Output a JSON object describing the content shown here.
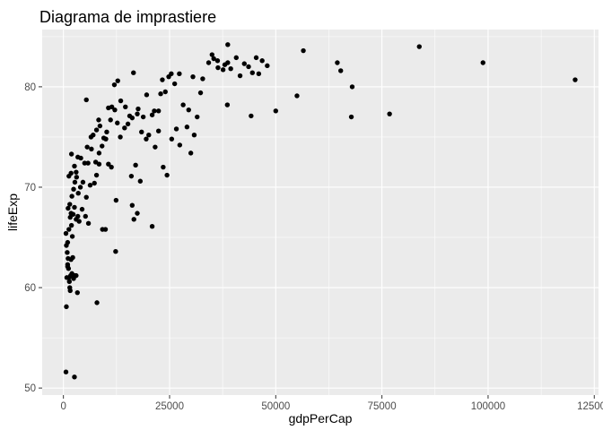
{
  "chart_data": {
    "type": "scatter",
    "title": "Diagrama de imprastiere",
    "xlabel": "gdpPerCap",
    "ylabel": "lifeExp",
    "xlim": [
      -5000,
      126000
    ],
    "ylim": [
      49.3,
      85.7
    ],
    "x_ticks": [
      0,
      25000,
      50000,
      75000,
      100000,
      125000
    ],
    "x_tick_labels": [
      "0",
      "25000",
      "50000",
      "75000",
      "100000",
      "125000"
    ],
    "y_ticks": [
      50,
      60,
      70,
      80
    ],
    "y_tick_labels": [
      "50",
      "60",
      "70",
      "80"
    ],
    "grid": true,
    "legend": "none",
    "colors": {
      "panel": "#ebebeb",
      "grid": "#ffffff",
      "points": "#000000",
      "tick_text": "#4d4d4d"
    },
    "series": [
      {
        "points": [
          [
            600,
            51.6
          ],
          [
            2600,
            51.1
          ],
          [
            700,
            58.1
          ],
          [
            7900,
            58.5
          ],
          [
            600,
            65.4
          ],
          [
            700,
            64.2
          ],
          [
            900,
            63.5
          ],
          [
            1000,
            62.3
          ],
          [
            1100,
            62.9
          ],
          [
            1200,
            61.9
          ],
          [
            1300,
            61.0
          ],
          [
            1400,
            60.6
          ],
          [
            1500,
            60.0
          ],
          [
            1600,
            59.7
          ],
          [
            1700,
            61.2
          ],
          [
            1800,
            62.8
          ],
          [
            2000,
            61.4
          ],
          [
            2200,
            63.0
          ],
          [
            2400,
            60.9
          ],
          [
            2600,
            61.2
          ],
          [
            3000,
            61.2
          ],
          [
            3300,
            59.5
          ],
          [
            800,
            61.0
          ],
          [
            1000,
            62.1
          ],
          [
            1000,
            64.5
          ],
          [
            1300,
            65.8
          ],
          [
            1600,
            67.0
          ],
          [
            1800,
            67.4
          ],
          [
            1900,
            66.2
          ],
          [
            2100,
            65.1
          ],
          [
            2300,
            67.3
          ],
          [
            2600,
            68.0
          ],
          [
            3000,
            66.8
          ],
          [
            3400,
            67.1
          ],
          [
            3700,
            66.6
          ],
          [
            4400,
            67.8
          ],
          [
            5200,
            67.1
          ],
          [
            5900,
            66.4
          ],
          [
            1100,
            67.9
          ],
          [
            1500,
            68.3
          ],
          [
            2000,
            69.1
          ],
          [
            2400,
            69.8
          ],
          [
            2700,
            70.5
          ],
          [
            3100,
            71.0
          ],
          [
            3500,
            69.4
          ],
          [
            4000,
            70.0
          ],
          [
            4600,
            70.5
          ],
          [
            5400,
            69.0
          ],
          [
            6300,
            70.2
          ],
          [
            7300,
            70.4
          ],
          [
            7800,
            71.2
          ],
          [
            8400,
            72.3
          ],
          [
            1300,
            71.1
          ],
          [
            1800,
            71.4
          ],
          [
            2600,
            72.1
          ],
          [
            3000,
            71.5
          ],
          [
            3400,
            73.0
          ],
          [
            4100,
            72.9
          ],
          [
            5000,
            72.4
          ],
          [
            5800,
            72.4
          ],
          [
            6600,
            73.8
          ],
          [
            7600,
            72.5
          ],
          [
            8400,
            73.4
          ],
          [
            9100,
            74.1
          ],
          [
            10000,
            74.8
          ],
          [
            10600,
            72.3
          ],
          [
            11300,
            72.0
          ],
          [
            1900,
            73.3
          ],
          [
            5600,
            74.0
          ],
          [
            6500,
            75.0
          ],
          [
            7000,
            75.2
          ],
          [
            7800,
            75.7
          ],
          [
            8600,
            76.1
          ],
          [
            9500,
            74.9
          ],
          [
            10200,
            75.5
          ],
          [
            11100,
            76.7
          ],
          [
            12100,
            77.7
          ],
          [
            12700,
            76.4
          ],
          [
            13400,
            75.0
          ],
          [
            14400,
            75.9
          ],
          [
            15200,
            76.3
          ],
          [
            16200,
            76.9
          ],
          [
            17400,
            77.3
          ],
          [
            18400,
            75.5
          ],
          [
            19500,
            74.8
          ],
          [
            8300,
            76.7
          ],
          [
            5400,
            78.7
          ],
          [
            10600,
            77.9
          ],
          [
            11400,
            78.0
          ],
          [
            12000,
            80.2
          ],
          [
            12800,
            80.6
          ],
          [
            13500,
            78.6
          ],
          [
            14600,
            78.0
          ],
          [
            15600,
            77.1
          ],
          [
            16500,
            81.4
          ],
          [
            17600,
            77.8
          ],
          [
            18800,
            77.0
          ],
          [
            19600,
            79.2
          ],
          [
            20900,
            77.2
          ],
          [
            21400,
            77.6
          ],
          [
            22400,
            77.6
          ],
          [
            22900,
            79.3
          ],
          [
            23300,
            80.7
          ],
          [
            24000,
            79.5
          ],
          [
            24800,
            81.0
          ],
          [
            25400,
            81.3
          ],
          [
            26200,
            80.3
          ],
          [
            20100,
            75.2
          ],
          [
            21600,
            74.0
          ],
          [
            22400,
            75.6
          ],
          [
            23500,
            72.0
          ],
          [
            24400,
            71.2
          ],
          [
            25500,
            74.8
          ],
          [
            26600,
            75.8
          ],
          [
            27400,
            74.2
          ],
          [
            28200,
            78.2
          ],
          [
            29100,
            76.0
          ],
          [
            30000,
            73.4
          ],
          [
            30800,
            75.2
          ],
          [
            16000,
            71.1
          ],
          [
            17000,
            72.2
          ],
          [
            18100,
            70.6
          ],
          [
            16200,
            68.2
          ],
          [
            17400,
            67.4
          ],
          [
            16600,
            66.8
          ],
          [
            20900,
            66.1
          ],
          [
            12300,
            63.6
          ],
          [
            12400,
            68.7
          ],
          [
            9200,
            65.8
          ],
          [
            9900,
            65.8
          ],
          [
            27300,
            81.3
          ],
          [
            29500,
            77.7
          ],
          [
            30500,
            81.0
          ],
          [
            31500,
            77.0
          ],
          [
            32300,
            79.4
          ],
          [
            32800,
            80.8
          ],
          [
            34200,
            82.4
          ],
          [
            35400,
            82.8
          ],
          [
            36300,
            82.6
          ],
          [
            37600,
            81.7
          ],
          [
            38700,
            82.4
          ],
          [
            39400,
            81.8
          ],
          [
            40700,
            82.9
          ],
          [
            41600,
            81.1
          ],
          [
            42600,
            82.3
          ],
          [
            43600,
            82.0
          ],
          [
            44500,
            81.4
          ],
          [
            45400,
            82.9
          ],
          [
            46000,
            81.3
          ],
          [
            46800,
            82.6
          ],
          [
            48000,
            82.1
          ],
          [
            36400,
            81.9
          ],
          [
            35000,
            83.2
          ],
          [
            38000,
            82.2
          ],
          [
            38700,
            84.2
          ],
          [
            38600,
            78.2
          ],
          [
            44200,
            77.1
          ],
          [
            50000,
            77.6
          ],
          [
            55000,
            79.1
          ],
          [
            56500,
            83.6
          ],
          [
            64500,
            82.4
          ],
          [
            65300,
            81.6
          ],
          [
            68000,
            80.0
          ],
          [
            67800,
            77.0
          ],
          [
            76800,
            77.3
          ],
          [
            83800,
            84.0
          ],
          [
            98800,
            82.4
          ],
          [
            120500,
            80.7
          ]
        ]
      }
    ]
  }
}
